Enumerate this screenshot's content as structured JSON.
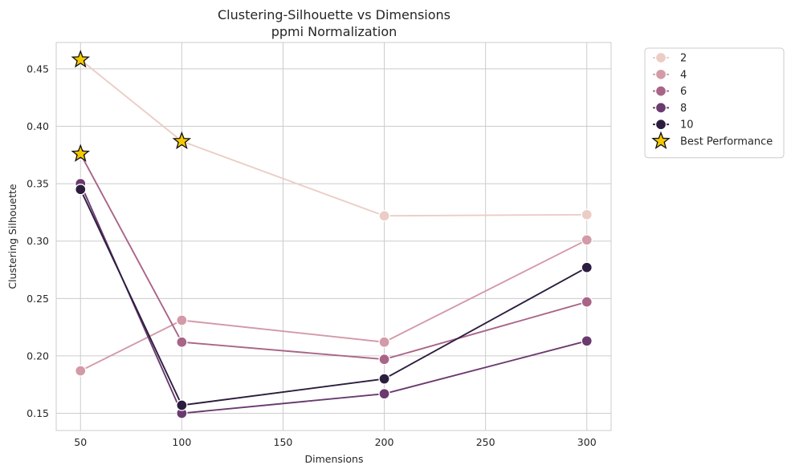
{
  "chart_data": {
    "type": "line",
    "title": "Clustering-Silhouette vs Dimensions",
    "subtitle": "ppmi Normalization",
    "xlabel": "Dimensions",
    "ylabel": "Clustering Silhouette",
    "xlim": [
      38,
      312
    ],
    "ylim": [
      0.135,
      0.473
    ],
    "xticks": [
      50,
      100,
      150,
      200,
      250,
      300
    ],
    "yticks": [
      0.15,
      0.2,
      0.25,
      0.3,
      0.35,
      0.4,
      0.45
    ],
    "ytick_labels": [
      "0.15",
      "0.20",
      "0.25",
      "0.30",
      "0.35",
      "0.40",
      "0.45"
    ],
    "grid": true,
    "legend_position": "outside upper right",
    "x": [
      50,
      100,
      200,
      300
    ],
    "series": [
      {
        "name": "2",
        "color": "#ebcdc6",
        "values": [
          0.458,
          0.387,
          0.322,
          0.323
        ]
      },
      {
        "name": "4",
        "color": "#d39aa8",
        "values": [
          0.187,
          0.231,
          0.212,
          0.301
        ]
      },
      {
        "name": "6",
        "color": "#a96588",
        "values": [
          0.376,
          0.212,
          0.197,
          0.247
        ]
      },
      {
        "name": "8",
        "color": "#6b3a6e",
        "values": [
          0.35,
          0.15,
          0.167,
          0.213
        ]
      },
      {
        "name": "10",
        "color": "#2c1d3f",
        "values": [
          0.345,
          0.157,
          0.18,
          0.277
        ]
      }
    ],
    "best_performance": {
      "label": "Best Performance",
      "color": "#f5c800",
      "points": [
        {
          "x": 50,
          "y": 0.458
        },
        {
          "x": 100,
          "y": 0.387
        },
        {
          "x": 50,
          "y": 0.376
        }
      ]
    }
  }
}
